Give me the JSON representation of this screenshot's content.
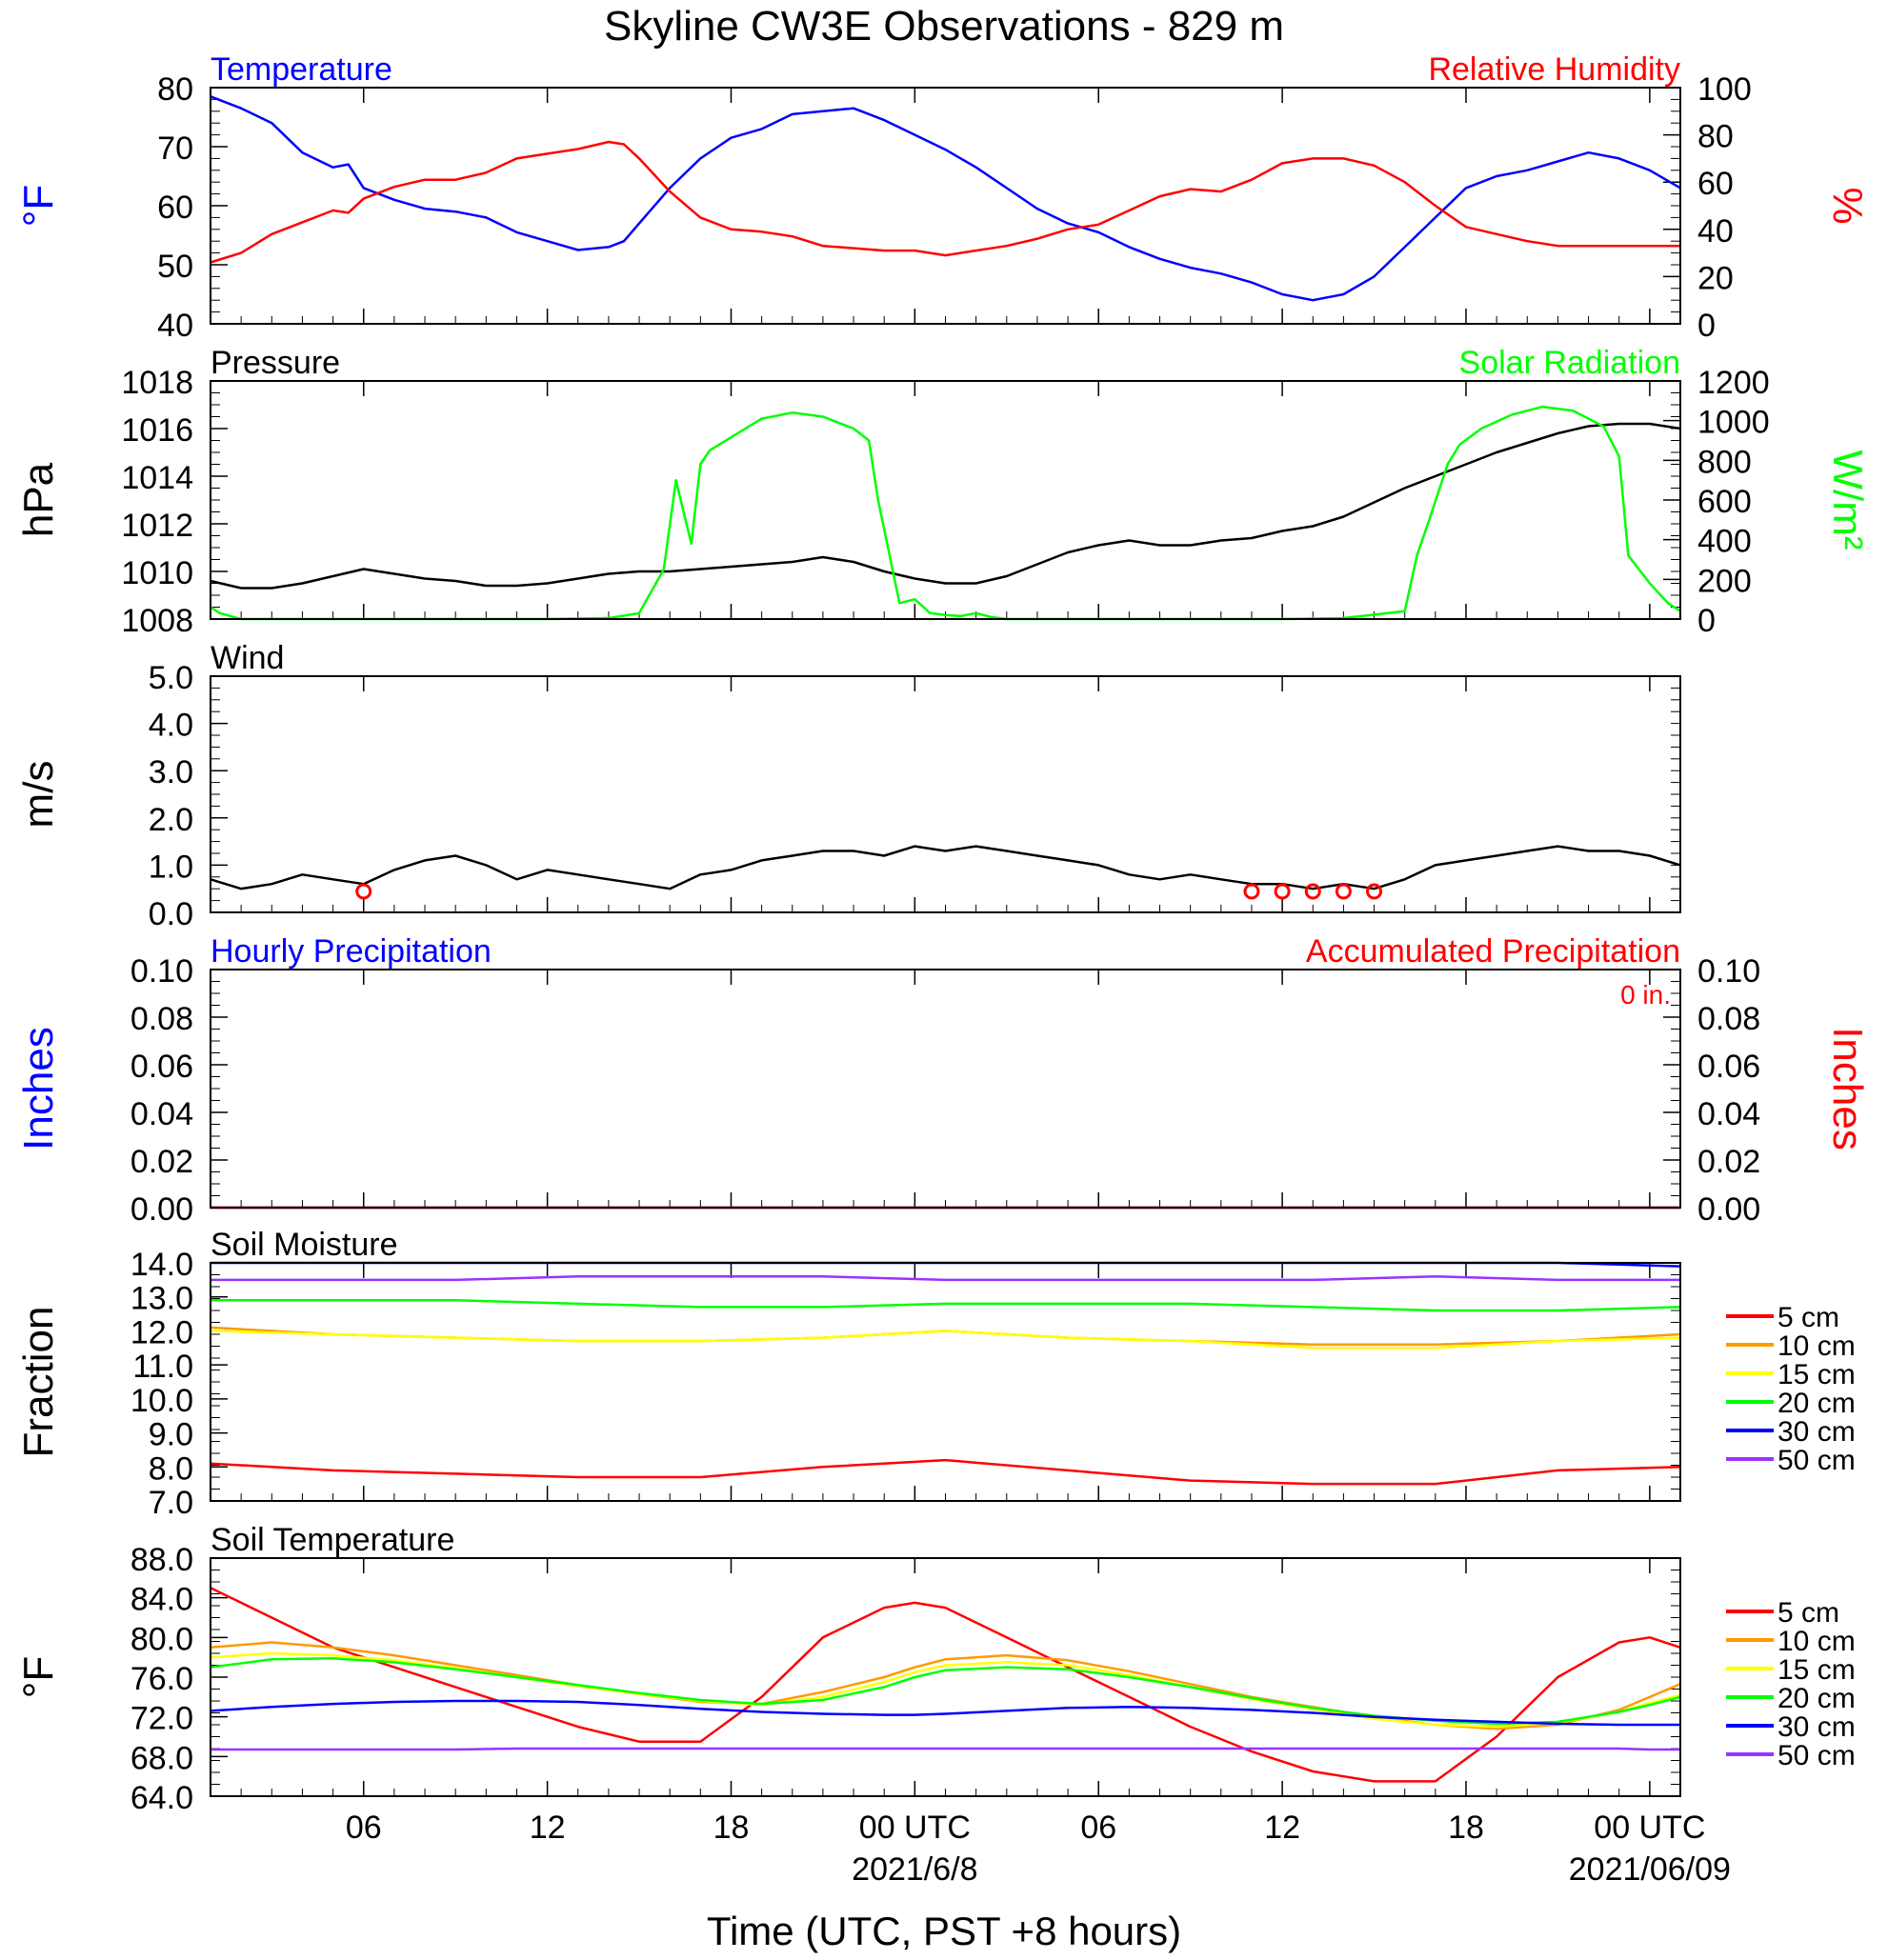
{
  "figure": {
    "title": "Skyline CW3E Observations - 829 m",
    "xlabel": "Time (UTC, PST +8 hours)",
    "x_ticks": [
      "06",
      "12",
      "18",
      "00 UTC",
      "06",
      "12",
      "18",
      "00 UTC"
    ],
    "date_labels": [
      "2021/6/8",
      "2021/06/09"
    ]
  },
  "colors": {
    "temperature": "#0000ff",
    "humidity": "#ff0000",
    "pressure": "#000000",
    "solar": "#00ff00",
    "wind": "#000000",
    "wind_barbs": "#ff0000",
    "soil_5cm": "#ff0000",
    "soil_10cm": "#ff9900",
    "soil_15cm": "#ffff00",
    "soil_20cm": "#00ff00",
    "soil_30cm": "#0000ff",
    "soil_50cm": "#9933ff"
  },
  "chart_data": [
    {
      "type": "line",
      "panel": "temperature-humidity",
      "left_title": "Temperature",
      "right_title": "Relative Humidity",
      "ylabel_left": "°F",
      "ylabel_right": "%",
      "ylim_left": [
        40,
        80
      ],
      "ylim_right": [
        0,
        100
      ],
      "yticks_left": [
        "80",
        "70",
        "60",
        "50",
        "40"
      ],
      "yticks_right": [
        "100",
        "80",
        "60",
        "40",
        "20",
        "0"
      ],
      "x_hours": [
        1,
        2,
        3,
        4,
        5,
        5.5,
        6,
        7,
        8,
        9,
        10,
        11,
        12,
        13,
        14,
        14.5,
        15,
        16,
        17,
        18,
        19,
        20,
        21,
        22,
        23,
        24,
        25,
        26,
        27,
        28,
        29,
        30,
        31,
        32,
        33,
        34,
        35,
        36,
        37,
        38,
        39,
        40,
        41,
        42,
        43,
        44,
        45,
        46,
        47,
        48,
        49
      ],
      "series": [
        {
          "name": "Temperature",
          "axis": "left",
          "values": [
            78.5,
            76.5,
            74,
            69,
            66.5,
            67,
            63,
            61,
            59.5,
            59,
            58,
            55.5,
            54,
            52.5,
            53,
            54,
            57,
            63,
            68,
            71.5,
            73,
            75.5,
            76,
            76.5,
            74.5,
            72,
            69.5,
            66.5,
            63,
            59.5,
            57,
            55.5,
            53,
            51,
            49.5,
            48.5,
            47,
            45,
            44,
            45,
            48,
            53,
            58,
            63,
            65,
            66,
            67.5,
            69,
            68,
            66,
            63
          ]
        },
        {
          "name": "Relative Humidity",
          "axis": "right",
          "values": [
            26,
            30,
            38,
            43,
            48,
            47,
            53,
            58,
            61,
            61,
            64,
            70,
            72,
            74,
            77,
            76,
            70,
            56,
            45,
            40,
            39,
            37,
            33,
            32,
            31,
            31,
            29,
            31,
            33,
            36,
            40,
            42,
            48,
            54,
            57,
            56,
            61,
            68,
            70,
            70,
            67,
            60,
            50,
            41,
            38,
            35,
            33,
            33,
            33,
            33,
            33
          ]
        }
      ]
    },
    {
      "type": "line",
      "panel": "pressure-solar",
      "left_title": "Pressure",
      "right_title": "Solar Radiation",
      "ylabel_left": "hPa",
      "ylabel_right": "W/m²",
      "ylim_left": [
        1008,
        1018
      ],
      "ylim_right": [
        0,
        1200
      ],
      "yticks_left": [
        "1018",
        "1016",
        "1014",
        "1012",
        "1010",
        "1008"
      ],
      "yticks_right": [
        "1200",
        "1000",
        "800",
        "600",
        "400",
        "200",
        "0"
      ],
      "series": [
        {
          "name": "Pressure",
          "axis": "left",
          "x_hours": [
            1,
            2,
            3,
            4,
            5,
            6,
            7,
            8,
            9,
            10,
            11,
            12,
            13,
            14,
            15,
            16,
            17,
            18,
            19,
            20,
            21,
            22,
            23,
            24,
            25,
            26,
            27,
            28,
            29,
            30,
            31,
            32,
            33,
            34,
            35,
            36,
            37,
            38,
            39,
            40,
            41,
            42,
            43,
            44,
            45,
            46,
            47,
            48,
            49
          ],
          "values": [
            1009.6,
            1009.3,
            1009.3,
            1009.5,
            1009.8,
            1010.1,
            1009.9,
            1009.7,
            1009.6,
            1009.4,
            1009.4,
            1009.5,
            1009.7,
            1009.9,
            1010.0,
            1010.0,
            1010.1,
            1010.2,
            1010.3,
            1010.4,
            1010.6,
            1010.4,
            1010.0,
            1009.7,
            1009.5,
            1009.5,
            1009.8,
            1010.3,
            1010.8,
            1011.1,
            1011.3,
            1011.1,
            1011.1,
            1011.3,
            1011.4,
            1011.7,
            1011.9,
            1012.3,
            1012.9,
            1013.5,
            1014.0,
            1014.5,
            1015.0,
            1015.4,
            1015.8,
            1016.1,
            1016.2,
            1016.2,
            1016.0
          ]
        },
        {
          "name": "Solar Radiation",
          "axis": "right",
          "x_hours": [
            1,
            1.3,
            2,
            6,
            12,
            14,
            15,
            15.8,
            16.2,
            16.7,
            17,
            17.3,
            19,
            20,
            21,
            22,
            22.5,
            22.8,
            23.5,
            24,
            24.5,
            25,
            25.5,
            26,
            26.5,
            27,
            30,
            36,
            38,
            40,
            40.4,
            40.8,
            41.4,
            41.8,
            42.5,
            43.5,
            44.5,
            45.5,
            46.5,
            47,
            47.3,
            48,
            48.6,
            49
          ],
          "values": [
            60,
            30,
            0,
            0,
            0,
            5,
            30,
            250,
            700,
            380,
            780,
            850,
            1010,
            1040,
            1020,
            960,
            900,
            600,
            80,
            100,
            30,
            20,
            15,
            30,
            10,
            0,
            0,
            0,
            5,
            40,
            320,
            500,
            780,
            880,
            960,
            1030,
            1070,
            1050,
            970,
            820,
            320,
            180,
            80,
            40
          ]
        }
      ]
    },
    {
      "type": "line",
      "panel": "wind",
      "left_title": "Wind",
      "ylabel_left": "m/s",
      "ylim_left": [
        0,
        5
      ],
      "yticks_left": [
        "5.0",
        "4.0",
        "3.0",
        "2.0",
        "1.0",
        "0.0"
      ],
      "x_hours": [
        1,
        2,
        3,
        4,
        5,
        6,
        7,
        8,
        9,
        10,
        11,
        12,
        13,
        14,
        15,
        16,
        17,
        18,
        19,
        20,
        21,
        22,
        23,
        24,
        25,
        26,
        27,
        28,
        29,
        30,
        31,
        32,
        33,
        34,
        35,
        36,
        37,
        38,
        39,
        40,
        41,
        42,
        43,
        44,
        45,
        46,
        47,
        48,
        49
      ],
      "series": [
        {
          "name": "Wind Speed",
          "values": [
            0.7,
            0.5,
            0.6,
            0.8,
            0.7,
            0.6,
            0.9,
            1.1,
            1.2,
            1.0,
            0.7,
            0.9,
            0.8,
            0.7,
            0.6,
            0.5,
            0.8,
            0.9,
            1.1,
            1.2,
            1.3,
            1.3,
            1.2,
            1.4,
            1.3,
            1.4,
            1.3,
            1.2,
            1.1,
            1.0,
            0.8,
            0.7,
            0.8,
            0.7,
            0.6,
            0.6,
            0.5,
            0.6,
            0.5,
            0.7,
            1.0,
            1.1,
            1.2,
            1.3,
            1.4,
            1.3,
            1.3,
            1.2,
            1.0
          ]
        }
      ],
      "calm_markers_hours": [
        6,
        35,
        36,
        37,
        38,
        39
      ]
    },
    {
      "type": "line",
      "panel": "precipitation",
      "left_title": "Hourly Precipitation",
      "right_title": "Accumulated Precipitation",
      "annotation": "0 in.",
      "ylabel_left": "Inches",
      "ylabel_right": "Inches",
      "ylim_left": [
        0,
        0.1
      ],
      "ylim_right": [
        0,
        0.1
      ],
      "yticks_left": [
        "0.10",
        "0.08",
        "0.06",
        "0.04",
        "0.02",
        "0.00"
      ],
      "yticks_right": [
        "0.10",
        "0.08",
        "0.06",
        "0.04",
        "0.02",
        "0.00"
      ],
      "x_hours": [
        1,
        49
      ],
      "series": [
        {
          "name": "Hourly Precipitation",
          "values": [
            0,
            0
          ]
        },
        {
          "name": "Accumulated Precipitation",
          "values": [
            0,
            0
          ]
        }
      ]
    },
    {
      "type": "line",
      "panel": "soil-moisture",
      "left_title": "Soil Moisture",
      "ylabel_left": "Fraction",
      "ylim_left": [
        7,
        14
      ],
      "yticks_left": [
        "14.0",
        "13.0",
        "12.0",
        "11.0",
        "10.0",
        "9.0",
        "8.0",
        "7.0"
      ],
      "x_hours": [
        1,
        5,
        9,
        13,
        17,
        21,
        25,
        29,
        33,
        37,
        41,
        45,
        49
      ],
      "series": [
        {
          "name": "5 cm",
          "values": [
            8.1,
            7.9,
            7.8,
            7.7,
            7.7,
            8.0,
            8.2,
            7.9,
            7.6,
            7.5,
            7.5,
            7.9,
            8.0
          ]
        },
        {
          "name": "10 cm",
          "values": [
            12.1,
            11.9,
            11.8,
            11.7,
            11.7,
            11.8,
            12.0,
            11.8,
            11.7,
            11.6,
            11.6,
            11.7,
            11.9
          ]
        },
        {
          "name": "15 cm",
          "values": [
            12.0,
            11.9,
            11.8,
            11.7,
            11.7,
            11.8,
            12.0,
            11.8,
            11.7,
            11.5,
            11.5,
            11.7,
            11.8
          ]
        },
        {
          "name": "20 cm",
          "values": [
            12.9,
            12.9,
            12.9,
            12.8,
            12.7,
            12.7,
            12.8,
            12.8,
            12.8,
            12.7,
            12.6,
            12.6,
            12.7
          ]
        },
        {
          "name": "30 cm",
          "values": [
            14.0,
            14.0,
            14.0,
            14.0,
            14.0,
            14.0,
            14.0,
            14.0,
            14.0,
            14.0,
            14.0,
            14.0,
            13.9
          ]
        },
        {
          "name": "50 cm",
          "values": [
            13.5,
            13.5,
            13.5,
            13.6,
            13.6,
            13.6,
            13.5,
            13.5,
            13.5,
            13.5,
            13.6,
            13.5,
            13.5
          ]
        }
      ]
    },
    {
      "type": "line",
      "panel": "soil-temperature",
      "left_title": "Soil Temperature",
      "ylabel_left": "°F",
      "ylim_left": [
        64,
        88
      ],
      "yticks_left": [
        "88.0",
        "84.0",
        "80.0",
        "76.0",
        "72.0",
        "68.0",
        "64.0"
      ],
      "x_hours": [
        1,
        3,
        5,
        7,
        9,
        11,
        13,
        15,
        17,
        19,
        21,
        23,
        24,
        25,
        27,
        29,
        31,
        33,
        35,
        37,
        39,
        41,
        43,
        45,
        47,
        48,
        49
      ],
      "series": [
        {
          "name": "5 cm",
          "values": [
            85,
            82,
            79,
            77,
            75,
            73,
            71,
            69.5,
            69.5,
            74,
            80,
            83,
            83.5,
            83,
            80,
            77,
            74,
            71,
            68.5,
            66.5,
            65.5,
            65.5,
            70,
            76,
            79.5,
            80,
            79
          ]
        },
        {
          "name": "10 cm",
          "values": [
            79,
            79.5,
            79,
            78.2,
            77.2,
            76.2,
            75.2,
            74.3,
            73.5,
            73.3,
            74.5,
            76,
            77,
            77.8,
            78.2,
            77.7,
            76.6,
            75.3,
            74,
            73,
            72,
            71.2,
            70.8,
            71.2,
            72.7,
            74,
            75.3
          ]
        },
        {
          "name": "15 cm",
          "values": [
            78,
            78.4,
            78.2,
            77.7,
            76.9,
            76,
            75.1,
            74.3,
            73.6,
            73.2,
            74,
            75.5,
            76.5,
            77.2,
            77.5,
            77.2,
            76.2,
            75,
            73.8,
            72.8,
            71.8,
            71.2,
            71,
            71.4,
            72.5,
            73.4,
            74.2
          ]
        },
        {
          "name": "20 cm",
          "values": [
            77,
            77.8,
            77.9,
            77.5,
            76.8,
            76,
            75.2,
            74.4,
            73.7,
            73.3,
            73.7,
            75,
            76,
            76.7,
            77,
            76.8,
            76,
            75,
            73.9,
            72.9,
            72.1,
            71.6,
            71.3,
            71.5,
            72.5,
            73.2,
            74
          ]
        },
        {
          "name": "30 cm",
          "values": [
            72.6,
            73,
            73.3,
            73.5,
            73.6,
            73.6,
            73.5,
            73.2,
            72.8,
            72.5,
            72.3,
            72.2,
            72.2,
            72.3,
            72.6,
            72.9,
            73,
            72.9,
            72.7,
            72.4,
            72,
            71.7,
            71.5,
            71.3,
            71.2,
            71.2,
            71.2
          ]
        },
        {
          "name": "50 cm",
          "values": [
            68.7,
            68.7,
            68.7,
            68.7,
            68.7,
            68.8,
            68.8,
            68.8,
            68.8,
            68.8,
            68.8,
            68.8,
            68.8,
            68.8,
            68.8,
            68.8,
            68.8,
            68.8,
            68.8,
            68.8,
            68.8,
            68.8,
            68.8,
            68.8,
            68.8,
            68.7,
            68.7
          ]
        }
      ]
    }
  ],
  "legend": [
    "5 cm",
    "10 cm",
    "15 cm",
    "20 cm",
    "30 cm",
    "50 cm"
  ]
}
